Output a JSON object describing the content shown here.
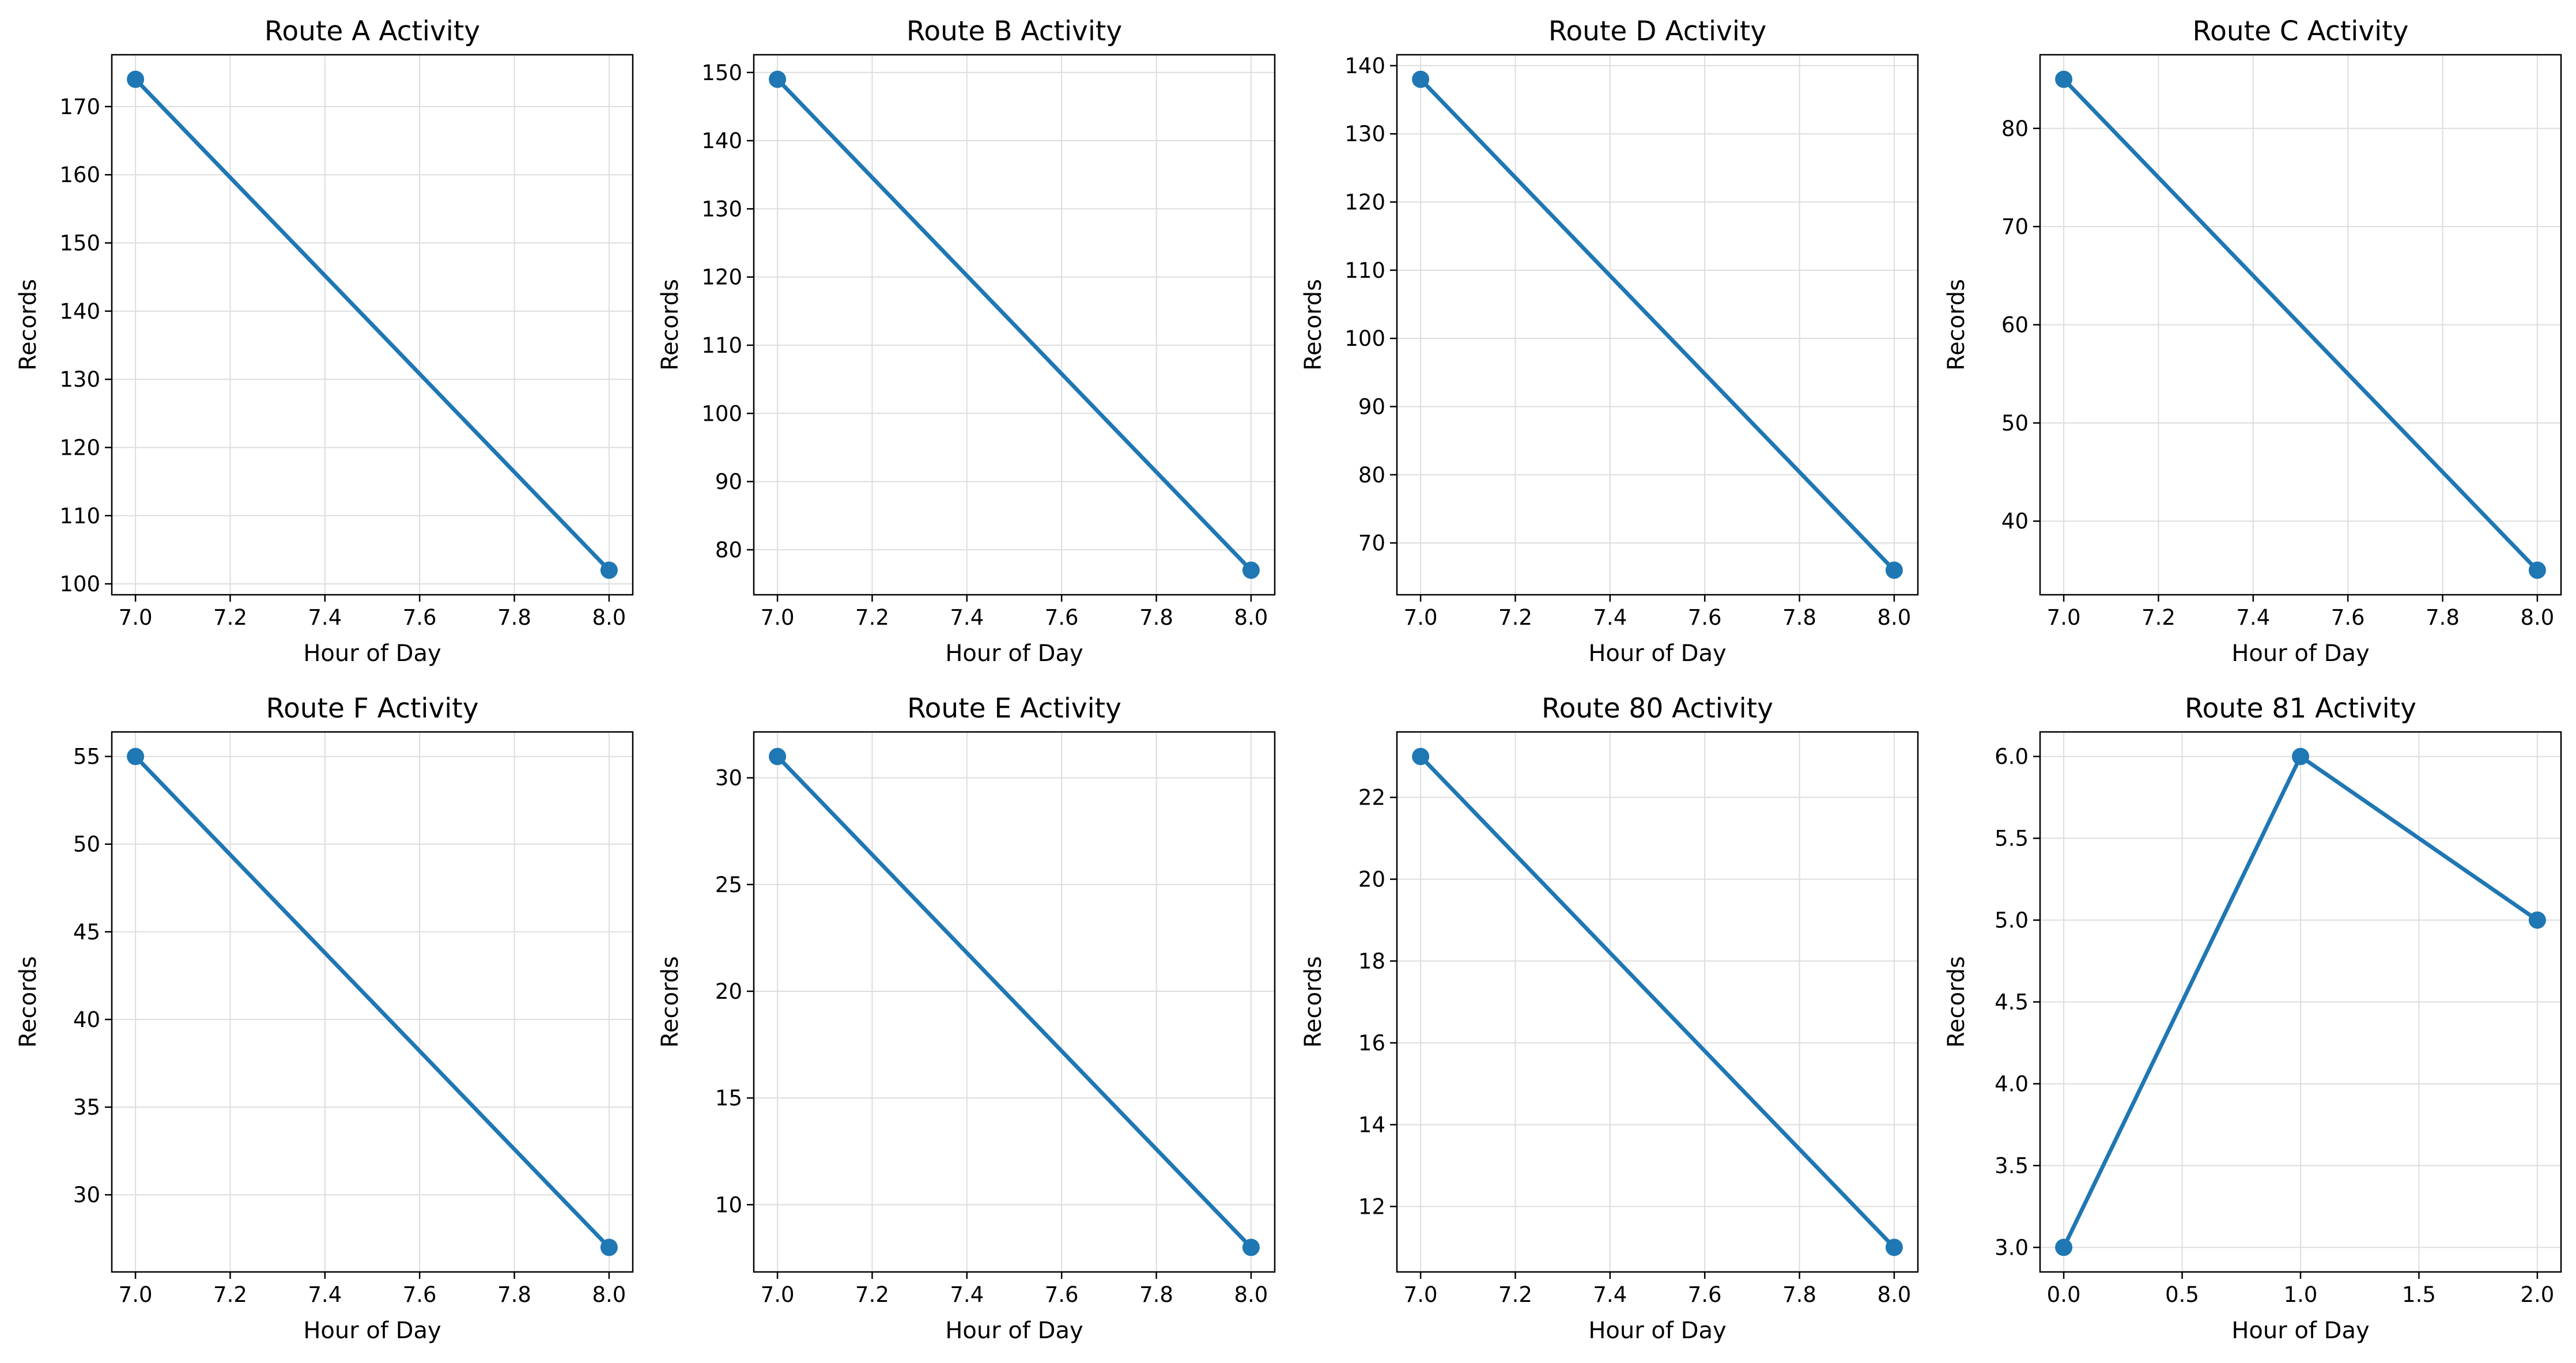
{
  "colors": {
    "series": "#1f77b4",
    "grid": "#dddddd",
    "axis": "#000000",
    "background": "#ffffff"
  },
  "chart_data": [
    {
      "type": "line",
      "title": "Route A Activity",
      "xlabel": "Hour of Day",
      "ylabel": "Records",
      "x": [
        7.0,
        8.0
      ],
      "y": [
        174,
        102
      ],
      "xlim": [
        6.95,
        8.05
      ],
      "ylim": [
        98.4,
        177.6
      ],
      "xticks": [
        "7.0",
        "7.2",
        "7.4",
        "7.6",
        "7.8",
        "8.0"
      ],
      "yticks": [
        "100",
        "110",
        "120",
        "130",
        "140",
        "150",
        "160",
        "170"
      ],
      "grid": true
    },
    {
      "type": "line",
      "title": "Route B Activity",
      "xlabel": "Hour of Day",
      "ylabel": "Records",
      "x": [
        7.0,
        8.0
      ],
      "y": [
        149,
        77
      ],
      "xlim": [
        6.95,
        8.05
      ],
      "ylim": [
        73.4,
        152.6
      ],
      "xticks": [
        "7.0",
        "7.2",
        "7.4",
        "7.6",
        "7.8",
        "8.0"
      ],
      "yticks": [
        "80",
        "90",
        "100",
        "110",
        "120",
        "130",
        "140",
        "150"
      ],
      "grid": true
    },
    {
      "type": "line",
      "title": "Route D Activity",
      "xlabel": "Hour of Day",
      "ylabel": "Records",
      "x": [
        7.0,
        8.0
      ],
      "y": [
        138,
        66
      ],
      "xlim": [
        6.95,
        8.05
      ],
      "ylim": [
        62.4,
        141.6
      ],
      "xticks": [
        "7.0",
        "7.2",
        "7.4",
        "7.6",
        "7.8",
        "8.0"
      ],
      "yticks": [
        "70",
        "80",
        "90",
        "100",
        "110",
        "120",
        "130",
        "140"
      ],
      "grid": true
    },
    {
      "type": "line",
      "title": "Route C Activity",
      "xlabel": "Hour of Day",
      "ylabel": "Records",
      "x": [
        7.0,
        8.0
      ],
      "y": [
        85,
        35
      ],
      "xlim": [
        6.95,
        8.05
      ],
      "ylim": [
        32.5,
        87.5
      ],
      "xticks": [
        "7.0",
        "7.2",
        "7.4",
        "7.6",
        "7.8",
        "8.0"
      ],
      "yticks": [
        "40",
        "50",
        "60",
        "70",
        "80"
      ],
      "grid": true
    },
    {
      "type": "line",
      "title": "Route F Activity",
      "xlabel": "Hour of Day",
      "ylabel": "Records",
      "x": [
        7.0,
        8.0
      ],
      "y": [
        55,
        27
      ],
      "xlim": [
        6.95,
        8.05
      ],
      "ylim": [
        25.6,
        56.4
      ],
      "xticks": [
        "7.0",
        "7.2",
        "7.4",
        "7.6",
        "7.8",
        "8.0"
      ],
      "yticks": [
        "30",
        "35",
        "40",
        "45",
        "50",
        "55"
      ],
      "grid": true
    },
    {
      "type": "line",
      "title": "Route E Activity",
      "xlabel": "Hour of Day",
      "ylabel": "Records",
      "x": [
        7.0,
        8.0
      ],
      "y": [
        31,
        8
      ],
      "xlim": [
        6.95,
        8.05
      ],
      "ylim": [
        6.85,
        32.15
      ],
      "xticks": [
        "7.0",
        "7.2",
        "7.4",
        "7.6",
        "7.8",
        "8.0"
      ],
      "yticks": [
        "10",
        "15",
        "20",
        "25",
        "30"
      ],
      "grid": true
    },
    {
      "type": "line",
      "title": "Route 80 Activity",
      "xlabel": "Hour of Day",
      "ylabel": "Records",
      "x": [
        7.0,
        8.0
      ],
      "y": [
        23,
        11
      ],
      "xlim": [
        6.95,
        8.05
      ],
      "ylim": [
        10.4,
        23.6
      ],
      "xticks": [
        "7.0",
        "7.2",
        "7.4",
        "7.6",
        "7.8",
        "8.0"
      ],
      "yticks": [
        "12",
        "14",
        "16",
        "18",
        "20",
        "22"
      ],
      "grid": true
    },
    {
      "type": "line",
      "title": "Route 81 Activity",
      "xlabel": "Hour of Day",
      "ylabel": "Records",
      "x": [
        0,
        1,
        2
      ],
      "y": [
        3,
        6,
        5
      ],
      "xlim": [
        -0.1,
        2.1
      ],
      "ylim": [
        2.85,
        6.15
      ],
      "xticks": [
        "0.0",
        "0.5",
        "1.0",
        "1.5",
        "2.0"
      ],
      "yticks": [
        "3.0",
        "3.5",
        "4.0",
        "4.5",
        "5.0",
        "5.5",
        "6.0"
      ],
      "grid": true
    }
  ]
}
